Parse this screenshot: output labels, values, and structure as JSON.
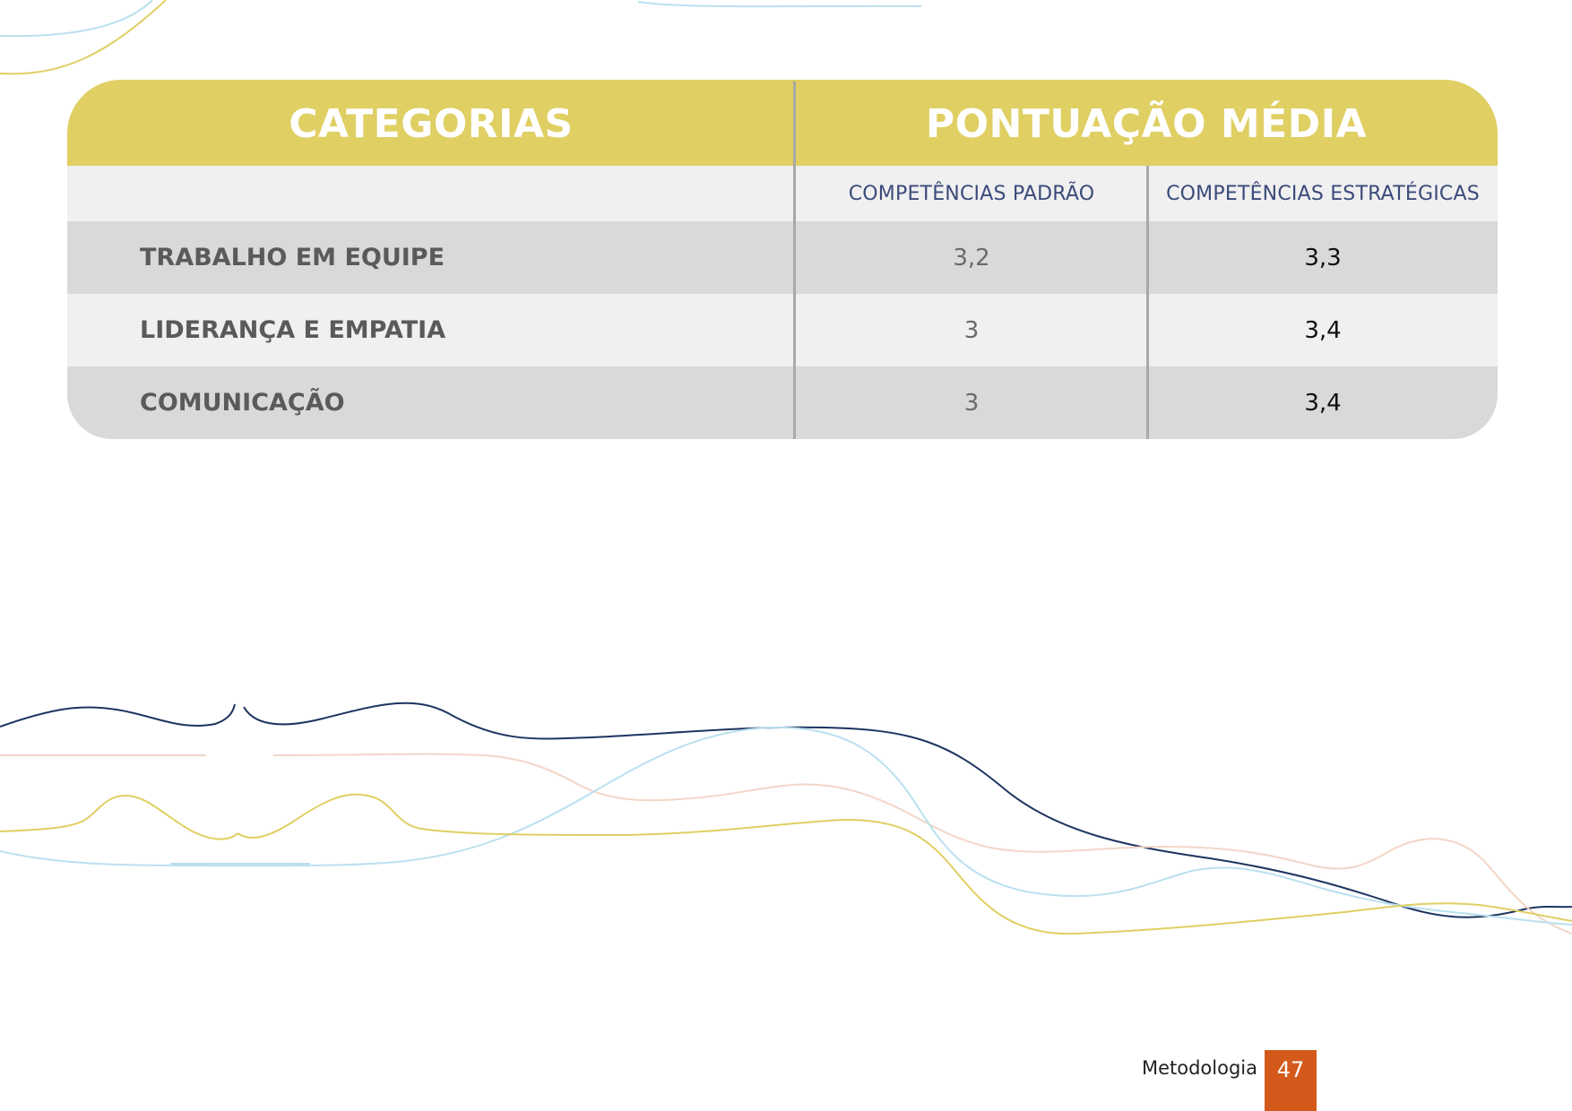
{
  "colors": {
    "header_bg": "#e0cf63",
    "row_dark": "#d9d9d9",
    "row_light": "#f0f0f0",
    "subheader_text": "#3b4a7a",
    "page_box": "#d35a1b"
  },
  "table": {
    "header": {
      "categorias": "CATEGORIAS",
      "pontuacao": "PONTUAÇÃO MÉDIA"
    },
    "subheader": {
      "padrao": "COMPETÊNCIAS PADRÃO",
      "estrategicas": "COMPETÊNCIAS ESTRATÉGICAS"
    },
    "rows": [
      {
        "categoria": "TRABALHO EM EQUIPE",
        "padrao": "3,2",
        "estrategicas": "3,3"
      },
      {
        "categoria": "LIDERANÇA E EMPATIA",
        "padrao": "3",
        "estrategicas": "3,4"
      },
      {
        "categoria": "COMUNICAÇÃO",
        "padrao": "3",
        "estrategicas": "3,4"
      }
    ]
  },
  "footer": {
    "section": "Metodologia",
    "page": "47"
  }
}
